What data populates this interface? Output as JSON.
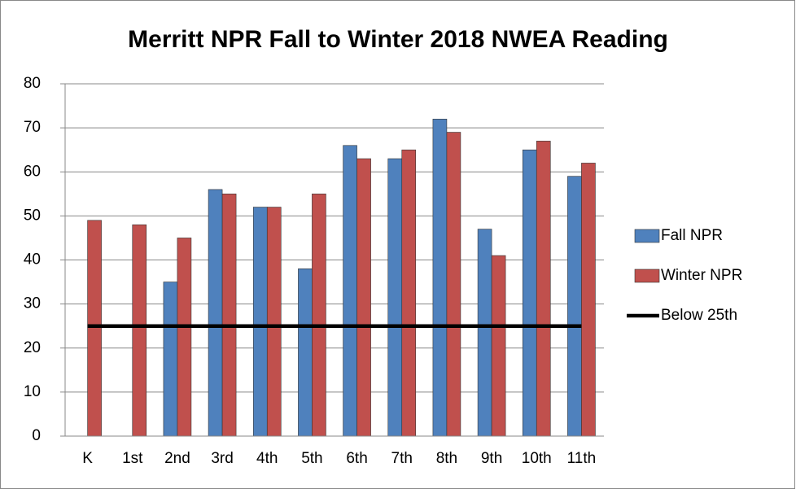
{
  "chart_data": {
    "type": "bar",
    "title": "Merritt NPR Fall to Winter 2018 NWEA Reading",
    "categories": [
      "K",
      "1st",
      "2nd",
      "3rd",
      "4th",
      "5th",
      "6th",
      "7th",
      "8th",
      "9th",
      "10th",
      "11th"
    ],
    "series": [
      {
        "name": "Fall NPR",
        "color": "#4f81bd",
        "values": [
          null,
          null,
          35,
          56,
          52,
          38,
          66,
          63,
          72,
          47,
          65,
          59
        ]
      },
      {
        "name": "Winter NPR",
        "color": "#c0504d",
        "values": [
          49,
          48,
          45,
          55,
          52,
          55,
          63,
          65,
          69,
          41,
          67,
          62
        ]
      },
      {
        "name": "Below 25th",
        "color": "#000000",
        "type": "line",
        "values": [
          25,
          25,
          25,
          25,
          25,
          25,
          25,
          25,
          25,
          25,
          25,
          25
        ]
      }
    ],
    "ylim": [
      0,
      80
    ],
    "yticks": [
      0,
      10,
      20,
      30,
      40,
      50,
      60,
      70,
      80
    ],
    "grid": true,
    "legend": "right"
  }
}
